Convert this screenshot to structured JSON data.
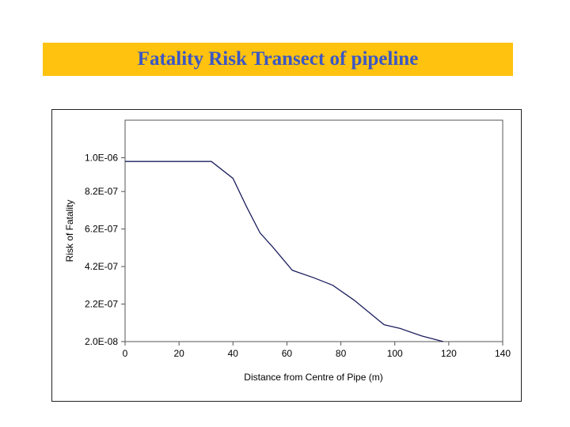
{
  "slide": {
    "title": "Fatality Risk Transect of pipeline",
    "banner_color": "#ffc20e",
    "title_color": "#3b57c4"
  },
  "chart_data": {
    "type": "line",
    "title": "",
    "xlabel": "Distance from Centre of Pipe (m)",
    "ylabel": "Risk of Fatality",
    "xlim": [
      0,
      140
    ],
    "ylim": [
      2e-08,
      1.2e-06
    ],
    "x_ticks": [
      0,
      20,
      40,
      60,
      80,
      100,
      120,
      140
    ],
    "x_tick_labels": [
      "0",
      "20",
      "40",
      "60",
      "80",
      "100",
      "120",
      "140"
    ],
    "y_ticks": [
      2e-08,
      2.2e-07,
      4.2e-07,
      6.2e-07,
      8.2e-07,
      1e-06
    ],
    "y_tick_labels": [
      "2.0E-08",
      "2.2E-07",
      "4.2E-07",
      "6.2E-07",
      "8.2E-07",
      "1.0E-06"
    ],
    "grid": false,
    "legend": "none",
    "line_color": "#1c1f5e",
    "series": [
      {
        "x": [
          0,
          32,
          40,
          45,
          50,
          55,
          62,
          70,
          77,
          85,
          96,
          102,
          110,
          118
        ],
        "y": [
          9.8e-07,
          9.8e-07,
          8.9e-07,
          7.4e-07,
          6e-07,
          5.2e-07,
          4e-07,
          3.6e-07,
          3.2e-07,
          2.4e-07,
          1.1e-07,
          9e-08,
          5e-08,
          2e-08
        ]
      }
    ]
  }
}
